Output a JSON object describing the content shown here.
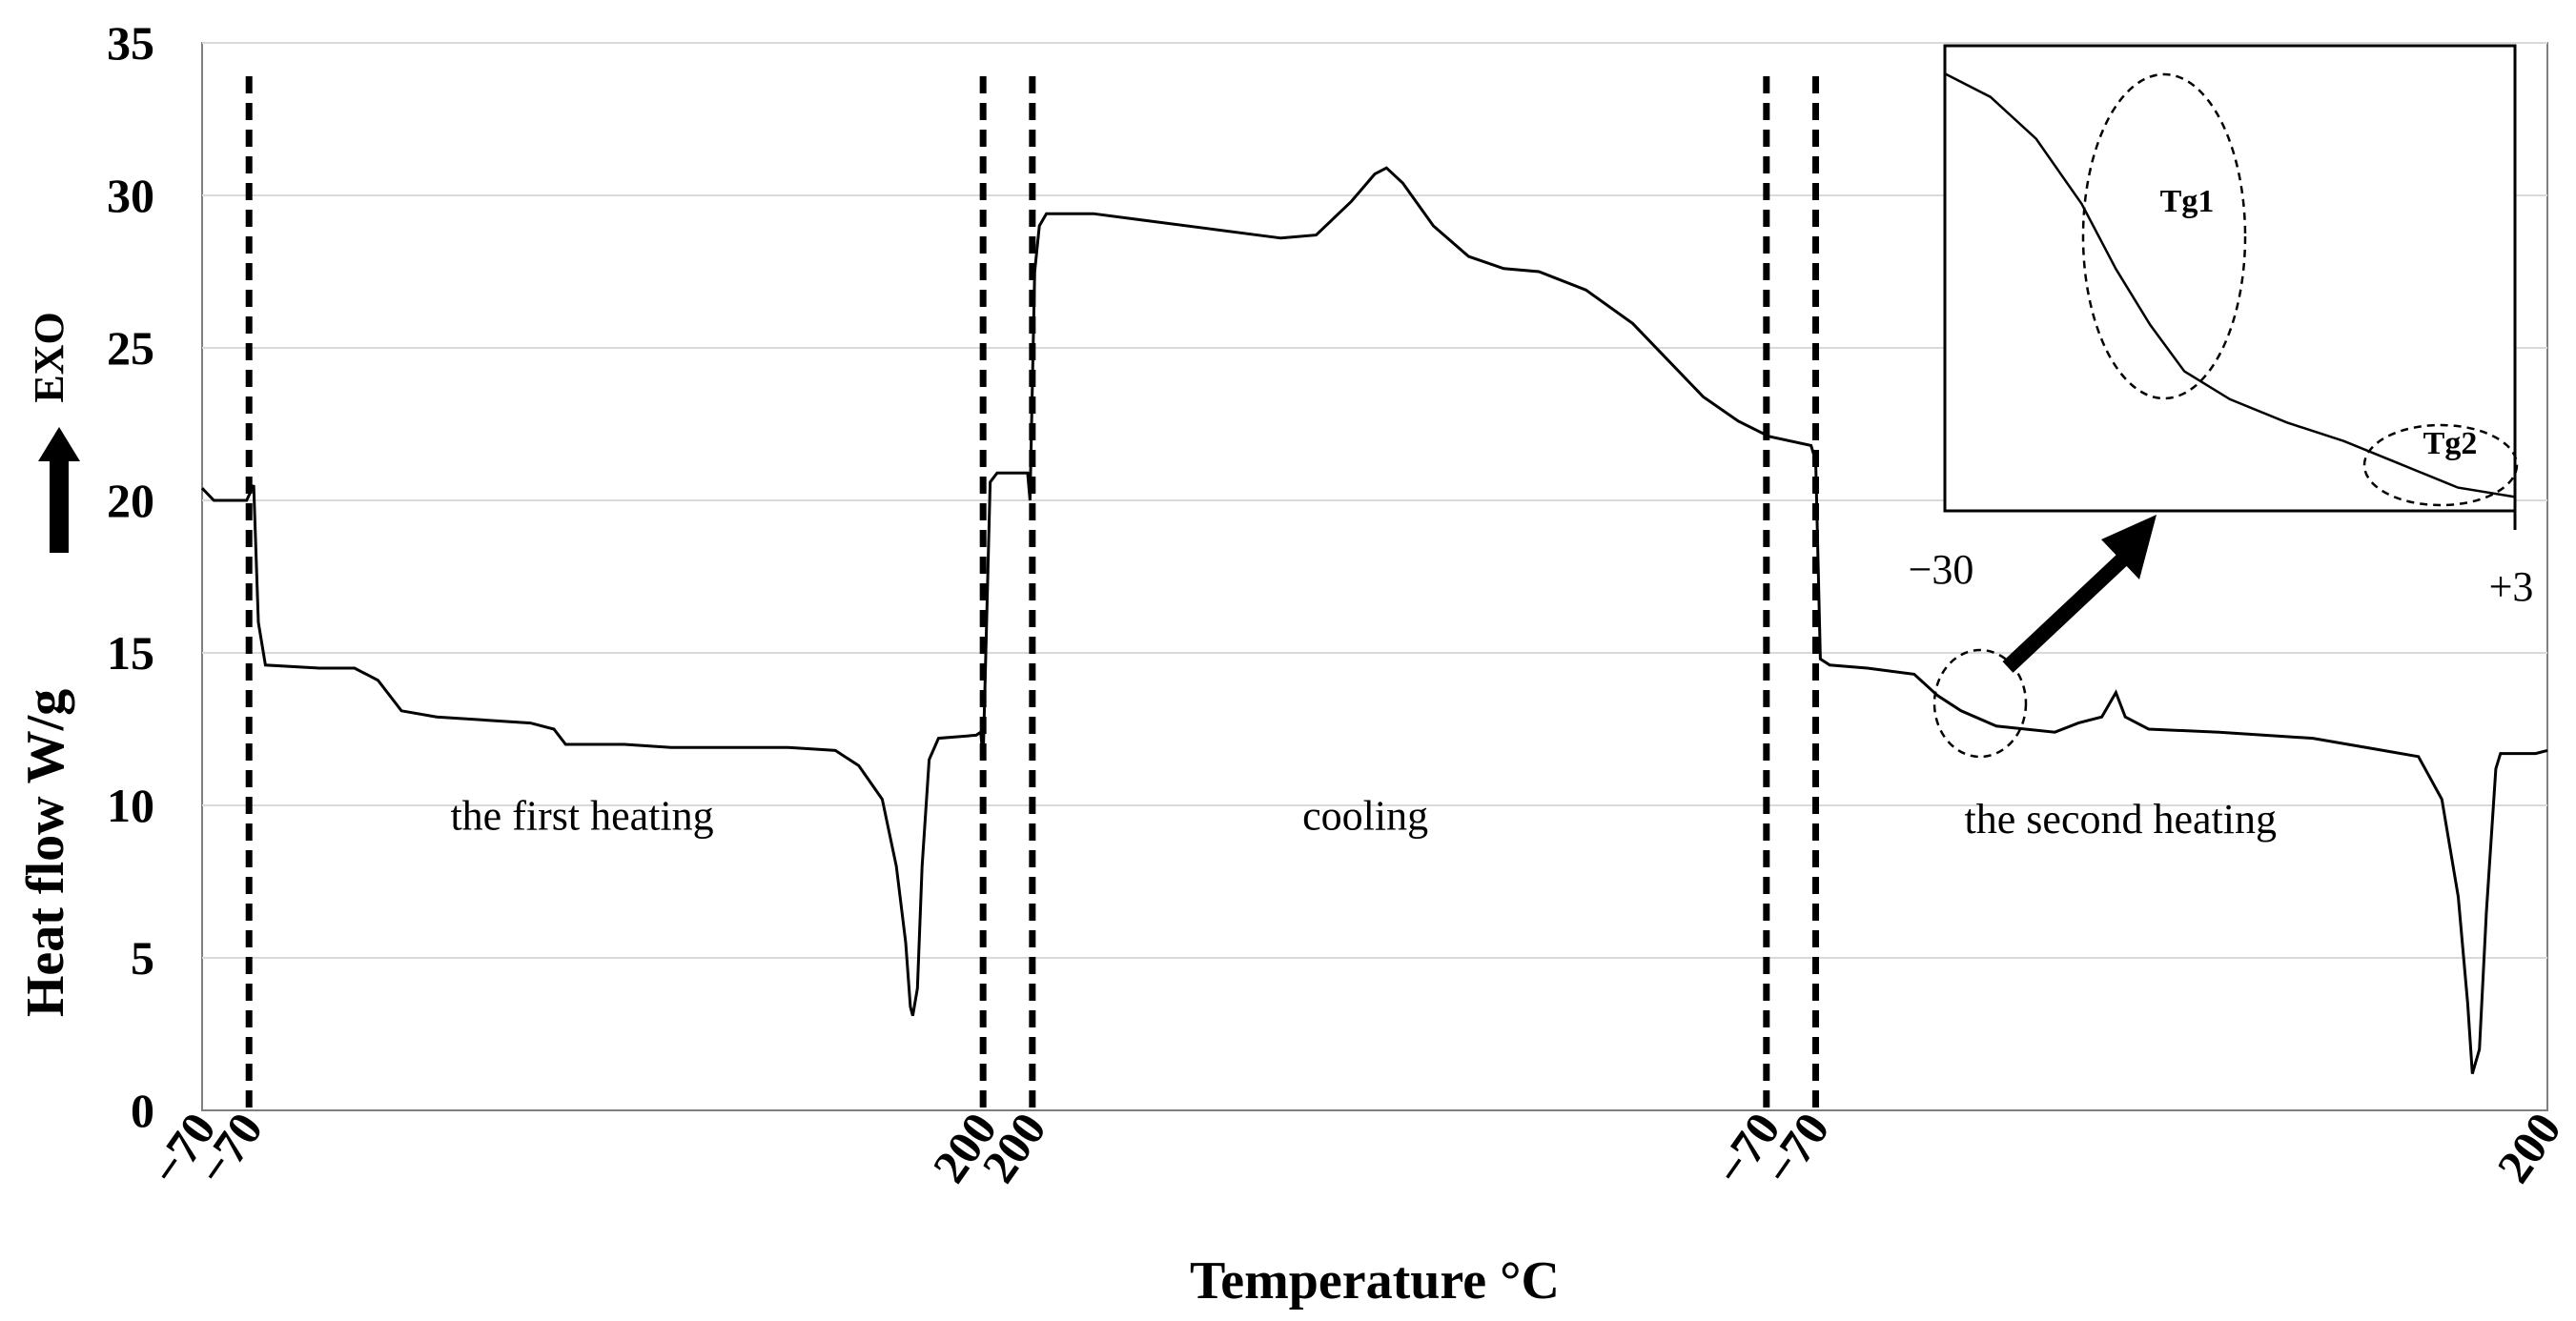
{
  "chart_data": {
    "type": "line",
    "title": "",
    "xlabel": "Temperature  °C",
    "ylabel": "Heat flow  W/g",
    "ylabel_extra": "EXO",
    "ylim": [
      0,
      35
    ],
    "y_ticks": [
      "0",
      "5",
      "10",
      "15",
      "20",
      "25",
      "30",
      "35"
    ],
    "x_ticks": [
      {
        "label": "−70",
        "t": 0.0
      },
      {
        "label": "−70",
        "t": 0.02
      },
      {
        "label": "200",
        "t": 0.333
      },
      {
        "label": "200",
        "t": 0.354
      },
      {
        "label": "−70",
        "t": 0.667
      },
      {
        "label": "−70",
        "t": 0.688
      },
      {
        "label": "200",
        "t": 1.0
      }
    ],
    "segment_boundaries_t": [
      0.02,
      0.333,
      0.354,
      0.667,
      0.688
    ],
    "segment_labels": [
      {
        "text": "the first heating",
        "t": 0.162,
        "y": 9.2
      },
      {
        "text": "cooling",
        "t": 0.496,
        "y": 9.2
      },
      {
        "text": "the second heating",
        "t": 0.818,
        "y": 9.1
      }
    ],
    "series": [
      {
        "name": "Heat flow",
        "points": [
          [
            0.0,
            20.4
          ],
          [
            0.005,
            20.0
          ],
          [
            0.019,
            20.0
          ],
          [
            0.022,
            20.5
          ],
          [
            0.024,
            16.0
          ],
          [
            0.027,
            14.6
          ],
          [
            0.05,
            14.5
          ],
          [
            0.065,
            14.5
          ],
          [
            0.075,
            14.1
          ],
          [
            0.085,
            13.1
          ],
          [
            0.1,
            12.9
          ],
          [
            0.14,
            12.7
          ],
          [
            0.15,
            12.5
          ],
          [
            0.155,
            12.0
          ],
          [
            0.18,
            12.0
          ],
          [
            0.2,
            11.9
          ],
          [
            0.25,
            11.9
          ],
          [
            0.27,
            11.8
          ],
          [
            0.28,
            11.3
          ],
          [
            0.29,
            10.2
          ],
          [
            0.296,
            8.0
          ],
          [
            0.3,
            5.5
          ],
          [
            0.302,
            3.4
          ],
          [
            0.303,
            3.1
          ],
          [
            0.305,
            4.0
          ],
          [
            0.307,
            8.0
          ],
          [
            0.31,
            11.5
          ],
          [
            0.314,
            12.2
          ],
          [
            0.33,
            12.3
          ],
          [
            0.332,
            12.4
          ],
          [
            0.333,
            11.5
          ],
          [
            0.336,
            20.6
          ],
          [
            0.339,
            20.9
          ],
          [
            0.352,
            20.9
          ],
          [
            0.353,
            20.0
          ],
          [
            0.355,
            27.5
          ],
          [
            0.357,
            29.0
          ],
          [
            0.36,
            29.4
          ],
          [
            0.38,
            29.4
          ],
          [
            0.4,
            29.2
          ],
          [
            0.43,
            28.9
          ],
          [
            0.46,
            28.6
          ],
          [
            0.475,
            28.7
          ],
          [
            0.49,
            29.8
          ],
          [
            0.5,
            30.7
          ],
          [
            0.505,
            30.9
          ],
          [
            0.512,
            30.4
          ],
          [
            0.525,
            29.0
          ],
          [
            0.54,
            28.0
          ],
          [
            0.555,
            27.6
          ],
          [
            0.57,
            27.5
          ],
          [
            0.59,
            26.9
          ],
          [
            0.61,
            25.8
          ],
          [
            0.625,
            24.6
          ],
          [
            0.64,
            23.4
          ],
          [
            0.655,
            22.6
          ],
          [
            0.668,
            22.1
          ],
          [
            0.686,
            21.8
          ],
          [
            0.688,
            21.3
          ],
          [
            0.69,
            14.8
          ],
          [
            0.694,
            14.6
          ],
          [
            0.71,
            14.5
          ],
          [
            0.73,
            14.3
          ],
          [
            0.74,
            13.6
          ],
          [
            0.75,
            13.1
          ],
          [
            0.765,
            12.6
          ],
          [
            0.79,
            12.4
          ],
          [
            0.8,
            12.7
          ],
          [
            0.81,
            12.9
          ],
          [
            0.816,
            13.7
          ],
          [
            0.82,
            12.9
          ],
          [
            0.83,
            12.5
          ],
          [
            0.86,
            12.4
          ],
          [
            0.9,
            12.2
          ],
          [
            0.93,
            11.8
          ],
          [
            0.945,
            11.6
          ],
          [
            0.955,
            10.2
          ],
          [
            0.962,
            7.0
          ],
          [
            0.966,
            3.5
          ],
          [
            0.968,
            1.2
          ],
          [
            0.971,
            2.0
          ],
          [
            0.974,
            6.5
          ],
          [
            0.978,
            11.2
          ],
          [
            0.98,
            11.7
          ],
          [
            0.995,
            11.7
          ],
          [
            1.0,
            11.8
          ]
        ]
      }
    ],
    "inset": {
      "x_ticks": [
        "−30",
        "+3"
      ],
      "labels": [
        "Tg1",
        "Tg2"
      ],
      "curve": [
        [
          0.0,
          0.06
        ],
        [
          0.08,
          0.11
        ],
        [
          0.16,
          0.2
        ],
        [
          0.24,
          0.34
        ],
        [
          0.3,
          0.48
        ],
        [
          0.36,
          0.6
        ],
        [
          0.42,
          0.7
        ],
        [
          0.5,
          0.76
        ],
        [
          0.6,
          0.81
        ],
        [
          0.7,
          0.85
        ],
        [
          0.8,
          0.9
        ],
        [
          0.9,
          0.95
        ],
        [
          1.0,
          0.97
        ]
      ]
    }
  },
  "colors": {
    "line": "#000000",
    "grid": "#d9d9d9",
    "frame": "#000000"
  }
}
